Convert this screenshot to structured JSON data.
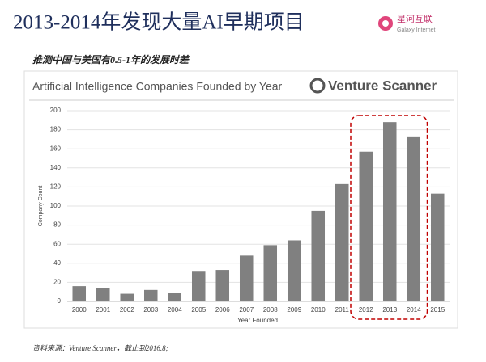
{
  "slide": {
    "title": "2013-2014年发现大量AI早期项目",
    "subtitle": "推测中国与美国有0.5-1年的发展时差",
    "logo_name": "星河互联",
    "logo_sub": "Galaxy Internet",
    "source": "资料来源：Venture Scanner，截止到2016.8;"
  },
  "chart_data": {
    "type": "bar",
    "title": "Artificial Intelligence Companies Founded by Year",
    "brand": "Venture Scanner",
    "xlabel": "Year Founded",
    "ylabel": "Company Count",
    "categories": [
      "2000",
      "2001",
      "2002",
      "2003",
      "2004",
      "2005",
      "2006",
      "2007",
      "2008",
      "2009",
      "2010",
      "2011",
      "2012",
      "2013",
      "2014",
      "2015"
    ],
    "values": [
      16,
      14,
      8,
      12,
      9,
      32,
      33,
      48,
      59,
      64,
      95,
      123,
      157,
      188,
      173,
      113
    ],
    "color": "#808080",
    "ylim": [
      0,
      200
    ],
    "yticks": [
      0,
      20,
      40,
      60,
      80,
      100,
      120,
      140,
      160,
      180,
      200
    ],
    "grid": true
  }
}
